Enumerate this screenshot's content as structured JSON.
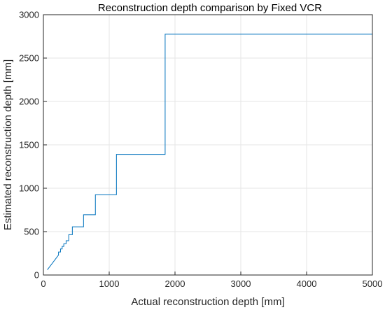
{
  "chart_data": {
    "type": "line",
    "title": "Reconstruction depth comparison by Fixed VCR",
    "xlabel": "Actual reconstruction depth [mm]",
    "ylabel": "Estimated reconstruction depth [mm]",
    "xlim": [
      0,
      5000
    ],
    "ylim": [
      0,
      3000
    ],
    "xticks": [
      0,
      1000,
      2000,
      3000,
      4000,
      5000
    ],
    "yticks": [
      0,
      500,
      1000,
      1500,
      2000,
      2500,
      3000
    ],
    "grid": true,
    "colors": {
      "series": "#0072bd",
      "grid": "#e6e6e6",
      "axis": "#262626"
    },
    "series": [
      {
        "x": [
          60,
          230,
          230,
          260,
          260,
          285,
          285,
          310,
          310,
          345,
          345,
          385,
          385,
          440,
          440,
          490,
          490,
          610,
          610,
          790,
          790,
          1110,
          1110,
          1850,
          1850,
          5000
        ],
        "y": [
          60,
          230,
          265,
          265,
          300,
          300,
          330,
          330,
          360,
          360,
          395,
          395,
          465,
          465,
          555,
          555,
          555,
          555,
          695,
          695,
          925,
          925,
          1390,
          1390,
          2775,
          2775
        ]
      }
    ]
  }
}
